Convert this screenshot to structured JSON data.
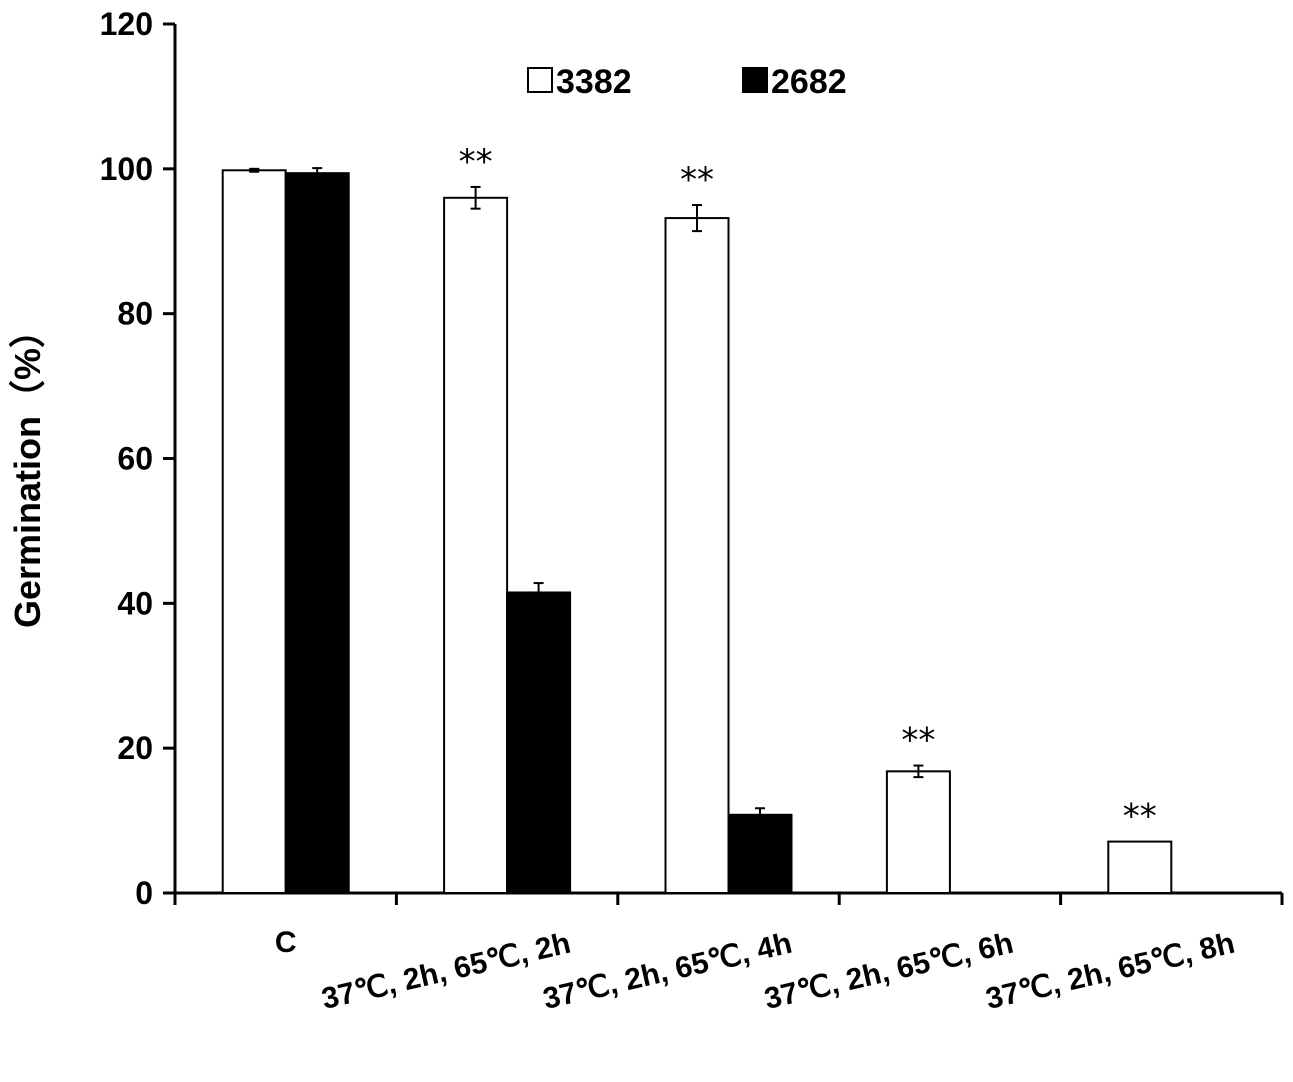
{
  "chart_data": {
    "type": "bar",
    "title": "",
    "xlabel": "",
    "ylabel": "Germination（%）",
    "ylim": [
      0,
      120
    ],
    "yticks": [
      "0",
      "20",
      "40",
      "60",
      "80",
      "100",
      "120"
    ],
    "grid": false,
    "legend_position": "top-center",
    "categories": [
      "C",
      "37℃, 2h,  65℃, 2h",
      "37℃, 2h,  65℃, 4h",
      "37℃, 2h,  65℃, 6h",
      "37℃, 2h,  65℃, 8h"
    ],
    "series": [
      {
        "name": "3382",
        "color": "#ffffff",
        "values": [
          99.8,
          96.0,
          93.2,
          16.8,
          7.1
        ],
        "errors": [
          0.2,
          1.5,
          1.8,
          0.8,
          0.0
        ]
      },
      {
        "name": "2682",
        "color": "#000000",
        "values": [
          99.4,
          41.5,
          10.8,
          0,
          0
        ],
        "errors": [
          0.7,
          1.3,
          0.9,
          0,
          0
        ]
      }
    ],
    "annotations": [
      "",
      "**",
      "**",
      "**",
      "**"
    ]
  }
}
